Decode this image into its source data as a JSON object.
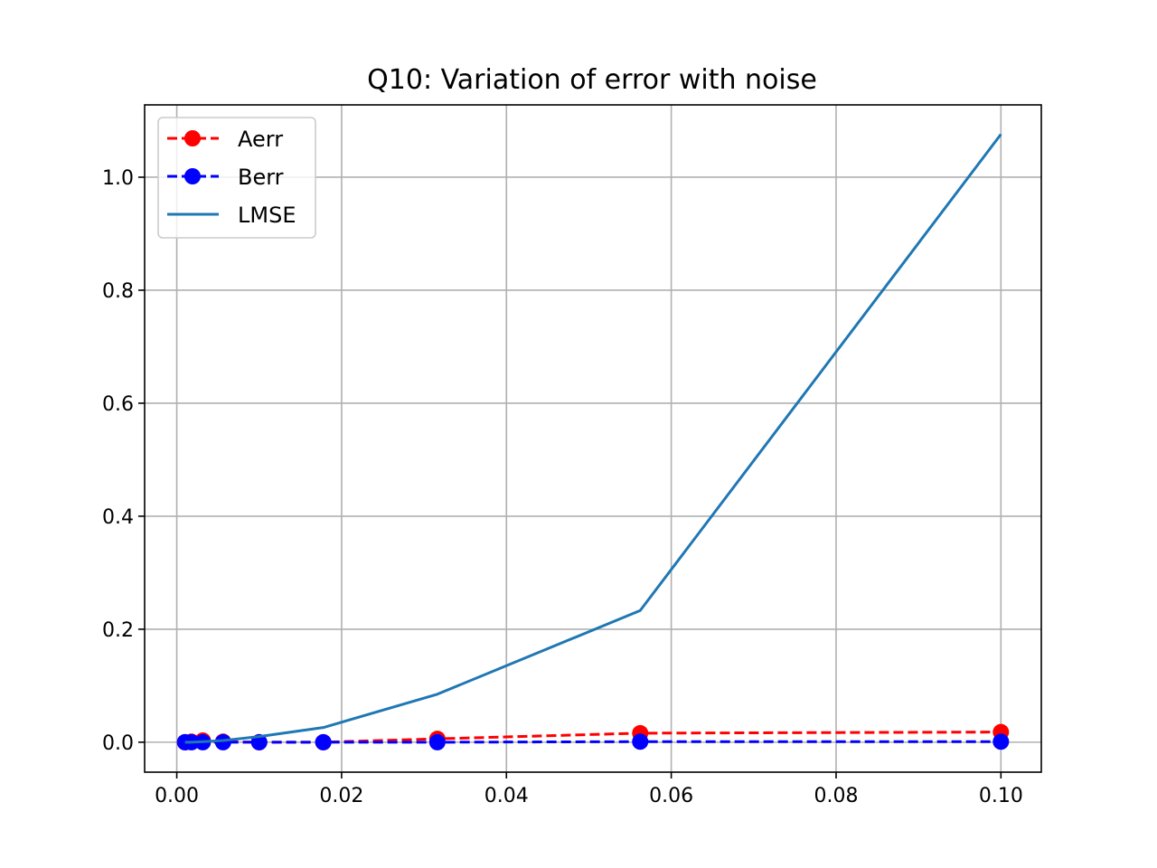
{
  "chart_data": {
    "type": "line",
    "title": "Q10: Variation of error with noise",
    "xlabel": "",
    "ylabel": "",
    "xlim": [
      -0.0039,
      0.1049
    ],
    "ylim": [
      -0.053,
      1.128
    ],
    "x_ticks": [
      0.0,
      0.02,
      0.04,
      0.06,
      0.08,
      0.1
    ],
    "x_tick_labels": [
      "0.00",
      "0.02",
      "0.04",
      "0.06",
      "0.08",
      "0.10"
    ],
    "y_ticks": [
      0.0,
      0.2,
      0.4,
      0.6,
      0.8,
      1.0
    ],
    "y_tick_labels": [
      "0.0",
      "0.2",
      "0.4",
      "0.6",
      "0.8",
      "1.0"
    ],
    "grid": true,
    "legend_position": "top-left",
    "x": [
      0.001,
      0.00178,
      0.00316,
      0.00562,
      0.01,
      0.01778,
      0.03162,
      0.05623,
      0.1
    ],
    "series": [
      {
        "name": "Aerr",
        "color": "#ff0000",
        "style": "dashed",
        "marker": "circle",
        "values": [
          0.0,
          0.001,
          0.003,
          0.001,
          0.0,
          0.0,
          0.006,
          0.016,
          0.018
        ]
      },
      {
        "name": "Berr",
        "color": "#0000ff",
        "style": "dashed",
        "marker": "circle",
        "values": [
          0.0,
          0.0,
          0.0,
          0.0,
          0.0,
          0.0,
          0.0,
          0.001,
          0.001
        ]
      },
      {
        "name": "LMSE",
        "color": "#1f77b4",
        "style": "solid",
        "marker": "none",
        "values": [
          0.0,
          0.0,
          0.001,
          0.003,
          0.01,
          0.026,
          0.085,
          0.233,
          1.076
        ]
      }
    ]
  }
}
